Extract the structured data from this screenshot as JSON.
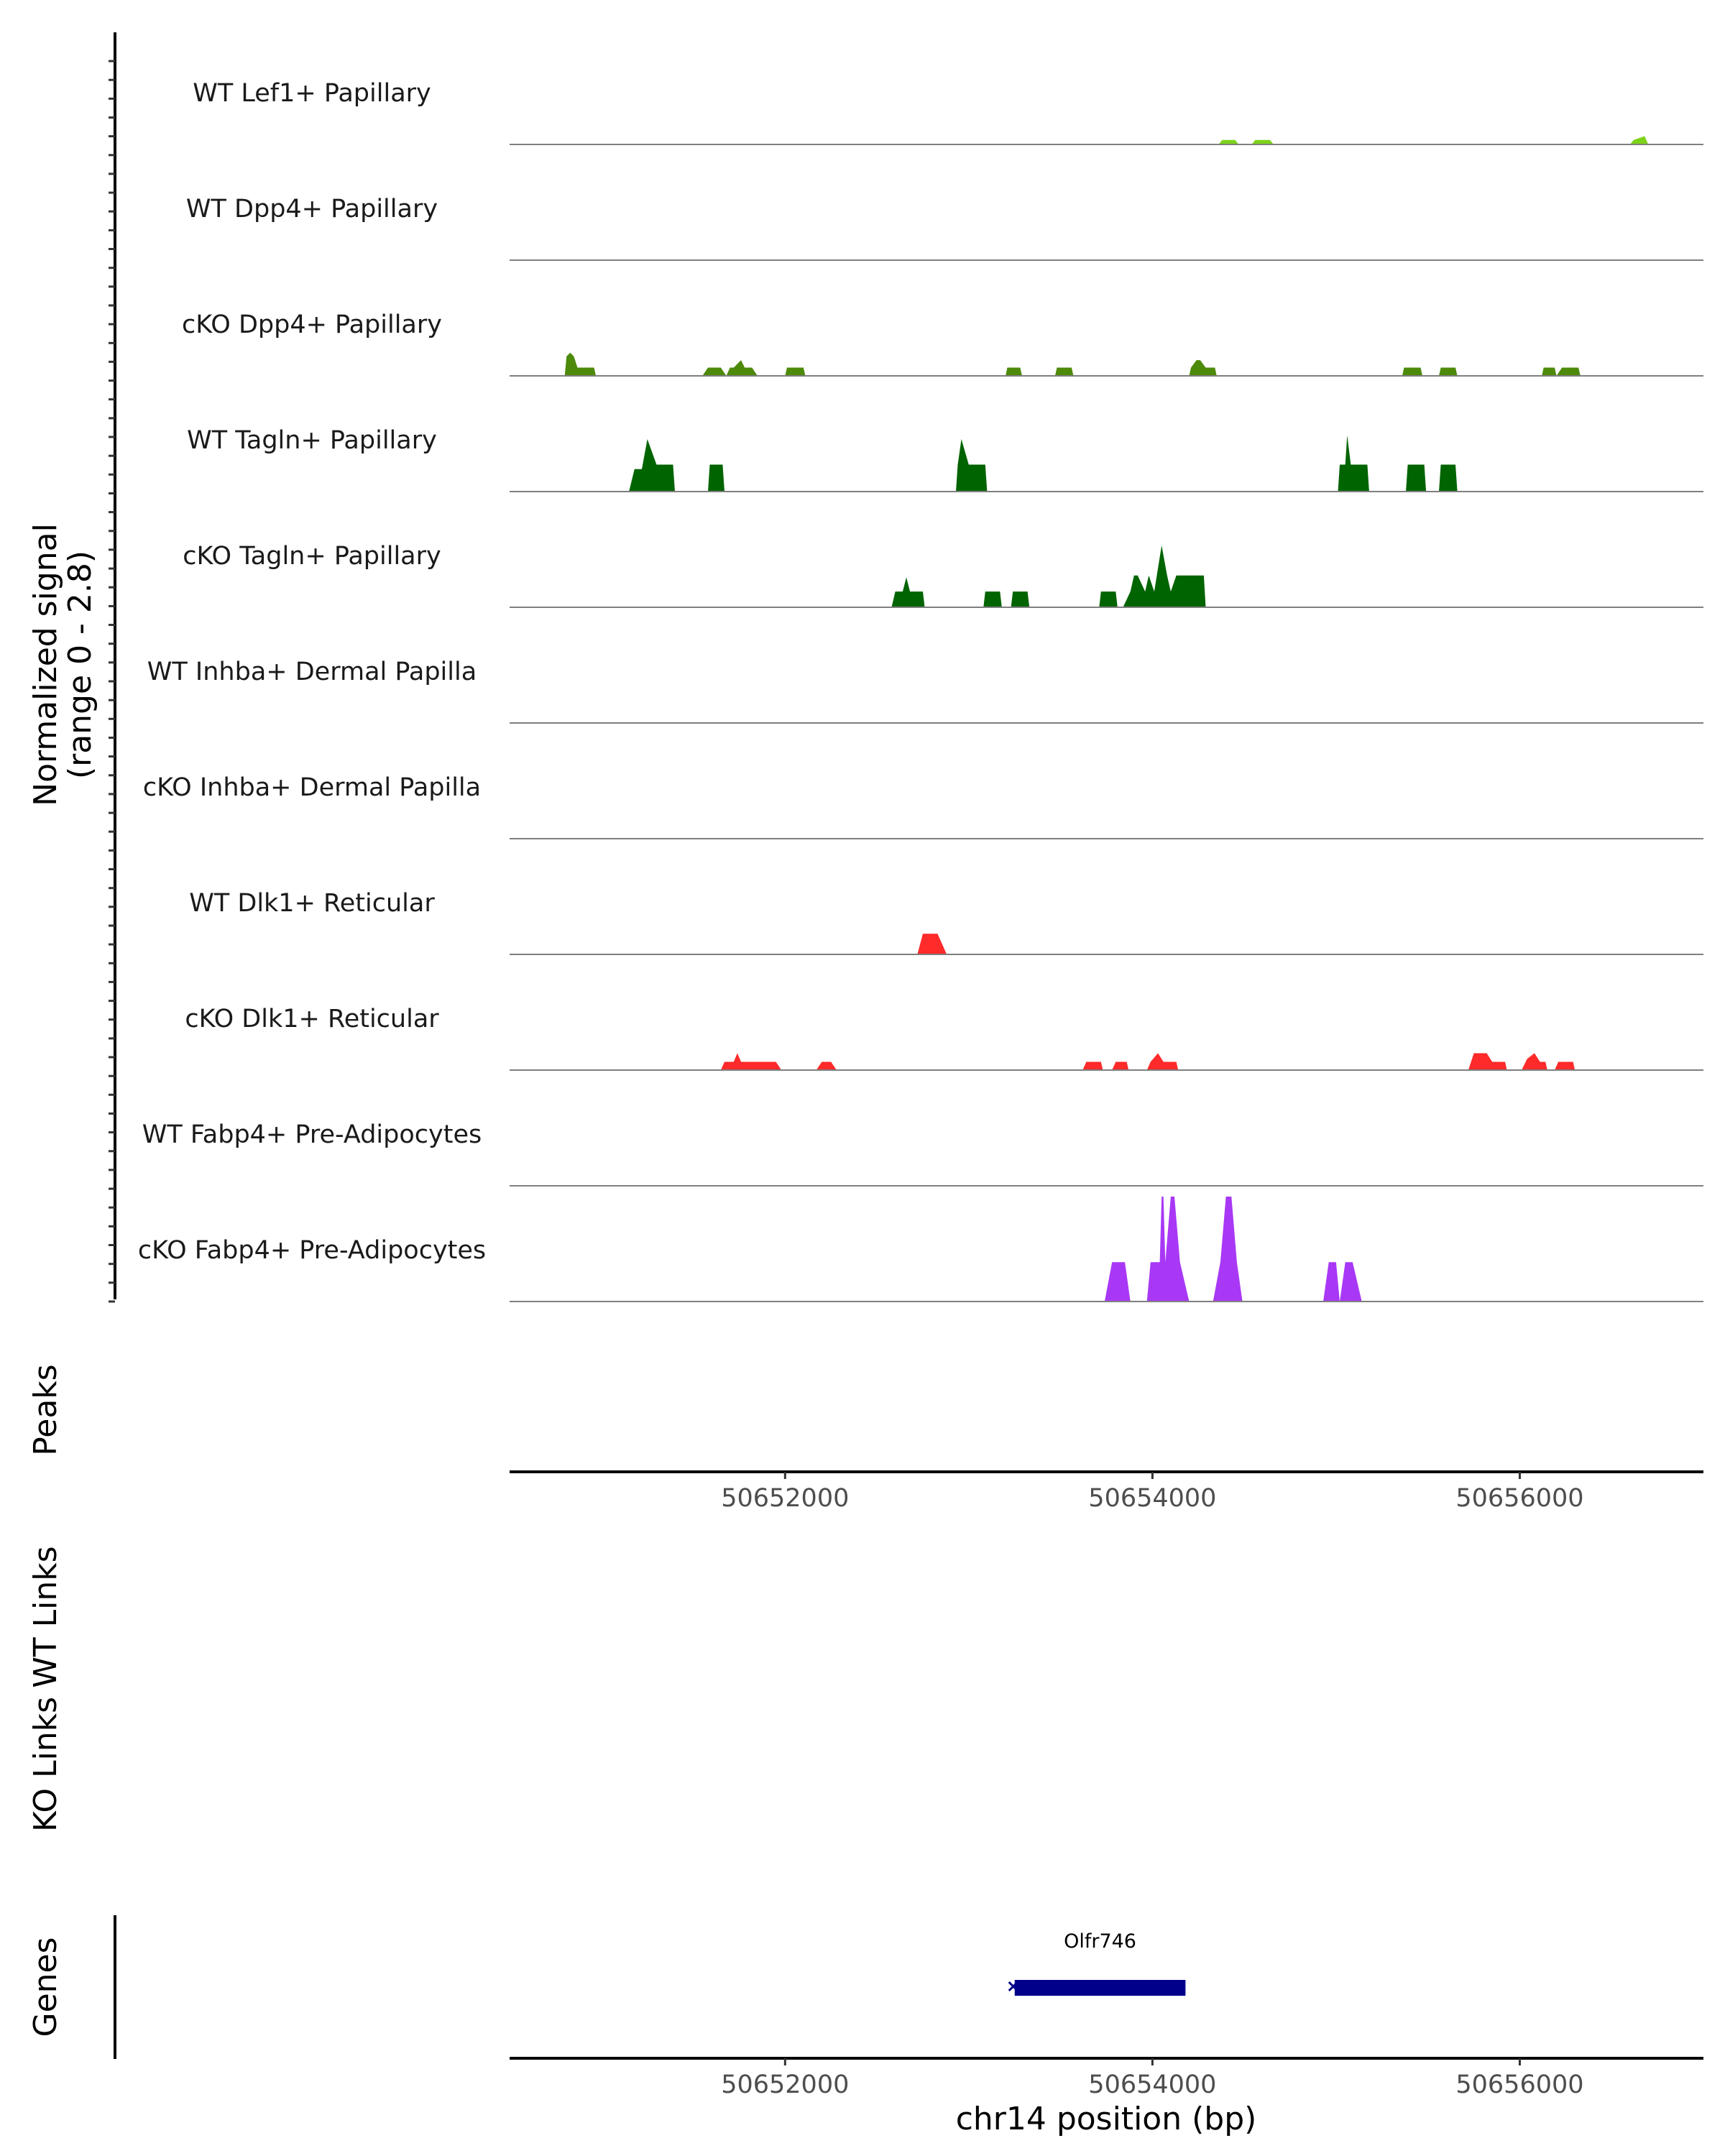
{
  "chart_data": {
    "type": "area",
    "title": "",
    "xlabel": "chr14 position (bp)",
    "ylabel": "Normalized signal",
    "ylabel_range": "(range 0 - 2.8)",
    "xlim": [
      50650500,
      50657000
    ],
    "ylim": [
      0,
      2.8
    ],
    "x_ticks": [
      50652000,
      50654000,
      50656000
    ],
    "x_tick_labels": [
      "50652000",
      "50654000",
      "50656000"
    ],
    "tracks": [
      {
        "name": "WT Lef1+ Papillary",
        "color": "#7cd31a",
        "x": [
          50654360,
          50654380,
          50654450,
          50654470,
          50654540,
          50654560,
          50654640,
          50654660,
          50656600,
          50656620,
          50656680,
          50656700
        ],
        "y": [
          0,
          0.12,
          0.12,
          0,
          0,
          0.12,
          0.12,
          0,
          0,
          0.12,
          0.22,
          0
        ]
      },
      {
        "name": "WT Dpp4+ Papillary",
        "color": "#6b8e23",
        "x": [],
        "y": []
      },
      {
        "name": "cKO Dpp4+ Papillary",
        "color": "#4d8a0a",
        "x": [
          50650800,
          50650810,
          50650830,
          50650850,
          50650870,
          50650900,
          50650960,
          50650970,
          50651550,
          50651580,
          50651650,
          50651680,
          50651700,
          50651720,
          50651760,
          50651780,
          50651820,
          50651850,
          50652000,
          50652010,
          50652100,
          50652110,
          50653200,
          50653210,
          50653280,
          50653290,
          50653470,
          50653480,
          50653560,
          50653570,
          50654200,
          50654210,
          50654240,
          50654260,
          50654290,
          50654300,
          50654340,
          50654350,
          50655360,
          50655370,
          50655460,
          50655470,
          50655560,
          50655570,
          50655650,
          50655660,
          50656120,
          50656130,
          50656190,
          50656200,
          50656230,
          50656240,
          50656320,
          50656330
        ],
        "y": [
          0,
          0.52,
          0.62,
          0.52,
          0.22,
          0.22,
          0.22,
          0,
          0,
          0.22,
          0.22,
          0,
          0.22,
          0.22,
          0.42,
          0.22,
          0.22,
          0,
          0,
          0.22,
          0.22,
          0,
          0,
          0.22,
          0.22,
          0,
          0,
          0.22,
          0.22,
          0,
          0,
          0.22,
          0.42,
          0.42,
          0.22,
          0.22,
          0.22,
          0,
          0,
          0.22,
          0.22,
          0,
          0,
          0.22,
          0.22,
          0,
          0,
          0.22,
          0.22,
          0,
          0.22,
          0.22,
          0.22,
          0
        ]
      },
      {
        "name": "WT Tagln+ Papillary",
        "color": "#006400",
        "x": [
          50651150,
          50651180,
          50651220,
          50651250,
          50651300,
          50651390,
          50651400,
          50651580,
          50651590,
          50651660,
          50651670,
          50652930,
          50652940,
          50652960,
          50653000,
          50653090,
          50653100,
          50655010,
          50655020,
          50655050,
          50655060,
          50655080,
          50655170,
          50655180,
          50655380,
          50655390,
          50655480,
          50655490,
          50655560,
          50655570,
          50655650,
          50655660
        ],
        "y": [
          0,
          0.6,
          0.6,
          1.4,
          0.72,
          0.72,
          0,
          0,
          0.72,
          0.72,
          0,
          0,
          0.72,
          1.4,
          0.72,
          0.72,
          0,
          0,
          0.72,
          0.72,
          1.5,
          0.72,
          0.72,
          0,
          0,
          0.72,
          0.72,
          0,
          0,
          0.72,
          0.72,
          0
        ]
      },
      {
        "name": "cKO Tagln+ Papillary",
        "color": "#006400",
        "x": [
          50652580,
          50652600,
          50652640,
          50652660,
          50652680,
          50652750,
          50652760,
          50653080,
          50653090,
          50653170,
          50653180,
          50653230,
          50653240,
          50653320,
          50653330,
          50653710,
          50653720,
          50653800,
          50653810,
          50653840,
          50653880,
          50653900,
          50653920,
          50653960,
          50653980,
          50654010,
          50654050,
          50654080,
          50654100,
          50654130,
          50654160,
          50654200,
          50654280,
          50654290
        ],
        "y": [
          0,
          0.42,
          0.42,
          0.8,
          0.42,
          0.42,
          0,
          0,
          0.42,
          0.42,
          0,
          0,
          0.42,
          0.42,
          0,
          0,
          0.42,
          0.42,
          0,
          0,
          0.42,
          0.85,
          0.85,
          0.42,
          0.85,
          0.42,
          1.65,
          0.85,
          0.42,
          0.85,
          0.85,
          0.85,
          0.85,
          0
        ]
      },
      {
        "name": "WT Inhba+ Dermal Papilla",
        "color": "#006400",
        "x": [],
        "y": []
      },
      {
        "name": "cKO Inhba+ Dermal Papilla",
        "color": "#006400",
        "x": [],
        "y": []
      },
      {
        "name": "WT Dlk1+ Reticular",
        "color": "#ff2a2a",
        "x": [
          50652720,
          50652750,
          50652790,
          50652830,
          50652880
        ],
        "y": [
          0,
          0.55,
          0.55,
          0.55,
          0
        ]
      },
      {
        "name": "cKO Dlk1+ Reticular",
        "color": "#ff2a2a",
        "x": [
          50651650,
          50651670,
          50651720,
          50651740,
          50651760,
          50651950,
          50651980,
          50652170,
          50652200,
          50652250,
          50652280,
          50653620,
          50653640,
          50653720,
          50653730,
          50653780,
          50653800,
          50653860,
          50653870,
          50653970,
          50653990,
          50654030,
          50654060,
          50654130,
          50654140,
          50655720,
          50655750,
          50655820,
          50655850,
          50655920,
          50655930,
          50656010,
          50656040,
          50656080,
          50656110,
          50656140,
          50656150,
          50656190,
          50656210,
          50656290,
          50656300
        ],
        "y": [
          0,
          0.22,
          0.22,
          0.45,
          0.22,
          0.22,
          0,
          0,
          0.22,
          0.22,
          0,
          0,
          0.22,
          0.22,
          0,
          0,
          0.22,
          0.22,
          0,
          0,
          0.22,
          0.45,
          0.22,
          0.22,
          0,
          0,
          0.45,
          0.45,
          0.22,
          0.22,
          0,
          0,
          0.3,
          0.45,
          0.22,
          0.22,
          0,
          0,
          0.22,
          0.22,
          0
        ]
      },
      {
        "name": "WT Fabp4+ Pre-Adipocytes",
        "color": "#a838f5",
        "x": [],
        "y": []
      },
      {
        "name": "cKO Fabp4+ Pre-Adipocytes",
        "color": "#a838f5",
        "x": [
          50653740,
          50653780,
          50653850,
          50653880,
          50653970,
          50653990,
          50654040,
          50654050,
          50654060,
          50654070,
          50654100,
          50654120,
          50654150,
          50654200,
          50654330,
          50654370,
          50654400,
          50654430,
          50654460,
          50654490,
          50654930,
          50654960,
          50655000,
          50655020,
          50655050,
          50655090,
          50655140
        ],
        "y": [
          0,
          1.05,
          1.05,
          0,
          0,
          1.05,
          1.05,
          2.8,
          2.8,
          1.05,
          2.8,
          2.8,
          1.05,
          0,
          0,
          1.05,
          2.8,
          2.8,
          1.05,
          0,
          0,
          1.05,
          1.05,
          0,
          1.05,
          1.05,
          0
        ]
      }
    ],
    "panel_labels": {
      "peaks": "Peaks",
      "wt_links": "WT Links",
      "ko_links": "KO Links",
      "genes": "Genes"
    },
    "genes": [
      {
        "name": "Olfr746",
        "start": 50653250,
        "end": 50654180,
        "color": "#00008b"
      }
    ]
  }
}
